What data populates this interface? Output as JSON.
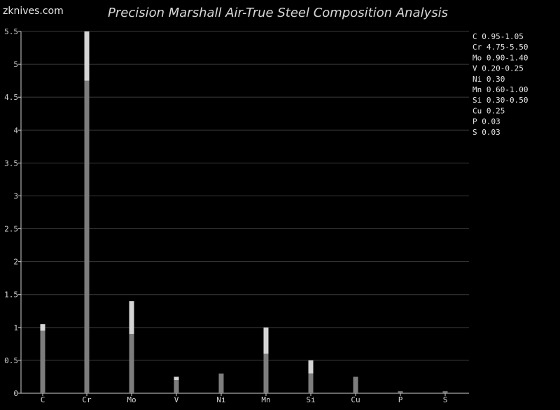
{
  "site_name": "zknives.com",
  "chart_data": {
    "type": "bar",
    "title": "Precision Marshall Air-True Steel Composition Analysis",
    "xlabel": "",
    "ylabel": "",
    "categories": [
      "C",
      "Cr",
      "Mo",
      "V",
      "Ni",
      "Mn",
      "Si",
      "Cu",
      "P",
      "S"
    ],
    "series": [
      {
        "min": [
          0.95,
          4.75,
          0.9,
          0.2,
          0.3,
          0.6,
          0.3,
          0.25,
          0.03,
          0.03
        ],
        "max": [
          1.05,
          5.5,
          1.4,
          0.25,
          0.3,
          1.0,
          0.5,
          0.25,
          0.03,
          0.03
        ]
      }
    ],
    "ylim": [
      0,
      5.5
    ],
    "yticks": [
      "0",
      "0.5",
      "1",
      "1.5",
      "2",
      "2.5",
      "3",
      "3.5",
      "4",
      "4.5",
      "5",
      "5.5"
    ],
    "grid": true,
    "legend_placement": "top-right",
    "legend_entries": [
      "C  0.95-1.05",
      "Cr 4.75-5.50",
      "Mo 0.90-1.40",
      "V  0.20-0.25",
      "Ni 0.30",
      "Mn 0.60-1.00",
      "Si 0.30-0.50",
      "Cu 0.25",
      "P  0.03",
      "S  0.03"
    ]
  },
  "colors": {
    "background": "#000000",
    "grid": "#3a3a3a",
    "axis": "#cfcfcf",
    "bar_min": "#7d7d7d",
    "bar_range": "#d5d5d5",
    "text": "#dddddd"
  }
}
